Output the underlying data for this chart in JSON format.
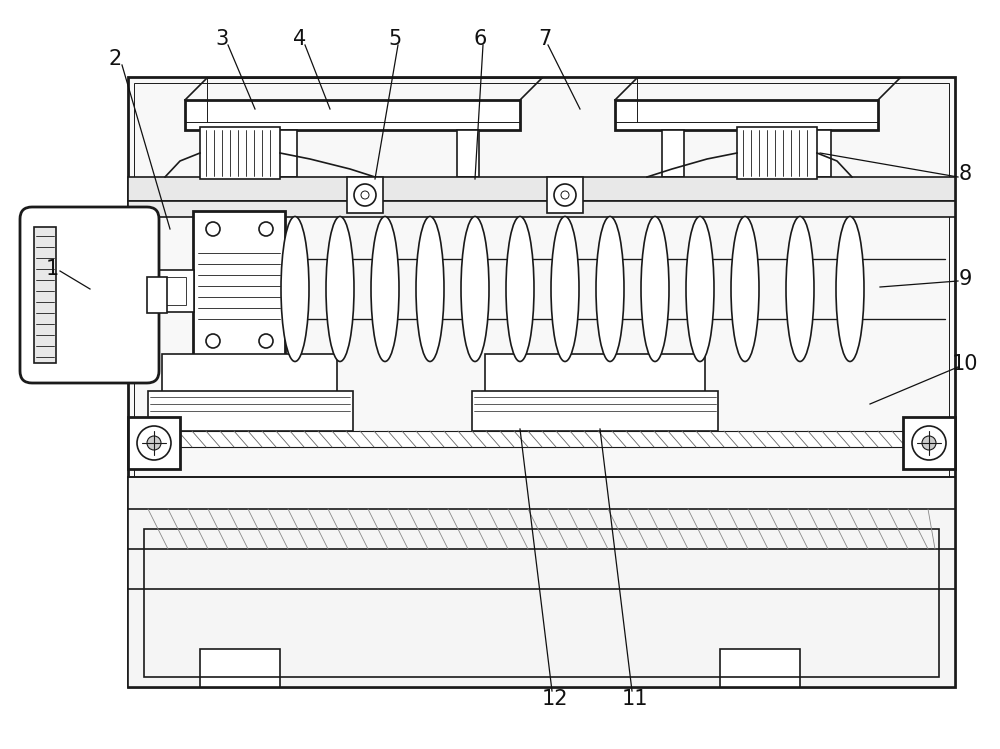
{
  "bg_color": "#ffffff",
  "line_color": "#1a1a1a",
  "figsize": [
    10.0,
    7.49
  ],
  "dpi": 100,
  "lw": 1.2,
  "tlw": 2.0
}
